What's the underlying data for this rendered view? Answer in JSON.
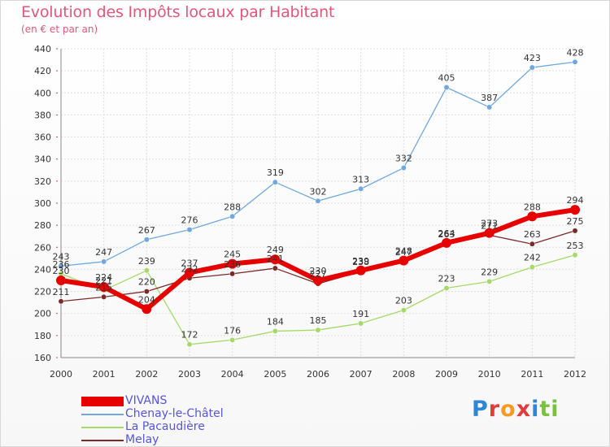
{
  "title": "Evolution des Impôts locaux par Habitant",
  "subtitle": "(en € et par an)",
  "logo": {
    "letters": [
      "P",
      "r",
      "o",
      "x",
      "i",
      "t",
      "i"
    ],
    "colors": [
      "#2e86d6",
      "#e03c3c",
      "#f59b22",
      "#e03c3c",
      "#2e86d6",
      "#7ac143",
      "#7ac143"
    ]
  },
  "chart_data": {
    "type": "line",
    "x": [
      "2000",
      "2001",
      "2002",
      "2003",
      "2004",
      "2005",
      "2006",
      "2007",
      "2008",
      "2009",
      "2010",
      "2011",
      "2012"
    ],
    "ylim": [
      160,
      440
    ],
    "yticks": [
      160,
      180,
      200,
      220,
      240,
      260,
      280,
      300,
      320,
      340,
      360,
      380,
      400,
      420,
      440
    ],
    "grid": true,
    "legend_position": "bottom-left",
    "series": [
      {
        "name": "VIVANS",
        "color": "#e60000",
        "values": [
          230,
          224,
          204,
          237,
          245,
          249,
          230,
          239,
          248,
          264,
          273,
          288,
          294
        ]
      },
      {
        "name": "Chenay-le-Châtel",
        "color": "#6fa8dc",
        "values": [
          243,
          247,
          267,
          276,
          288,
          319,
          302,
          313,
          332,
          405,
          387,
          423,
          428
        ]
      },
      {
        "name": "La Pacaudière",
        "color": "#a6d96a",
        "values": [
          236,
          221,
          239,
          172,
          176,
          184,
          185,
          191,
          203,
          223,
          229,
          242,
          253
        ]
      },
      {
        "name": "Melay",
        "color": "#7b2a2a",
        "values": [
          211,
          215,
          220,
          232,
          236,
          241,
          227,
          238,
          247,
          263,
          271,
          263,
          275
        ]
      }
    ]
  }
}
